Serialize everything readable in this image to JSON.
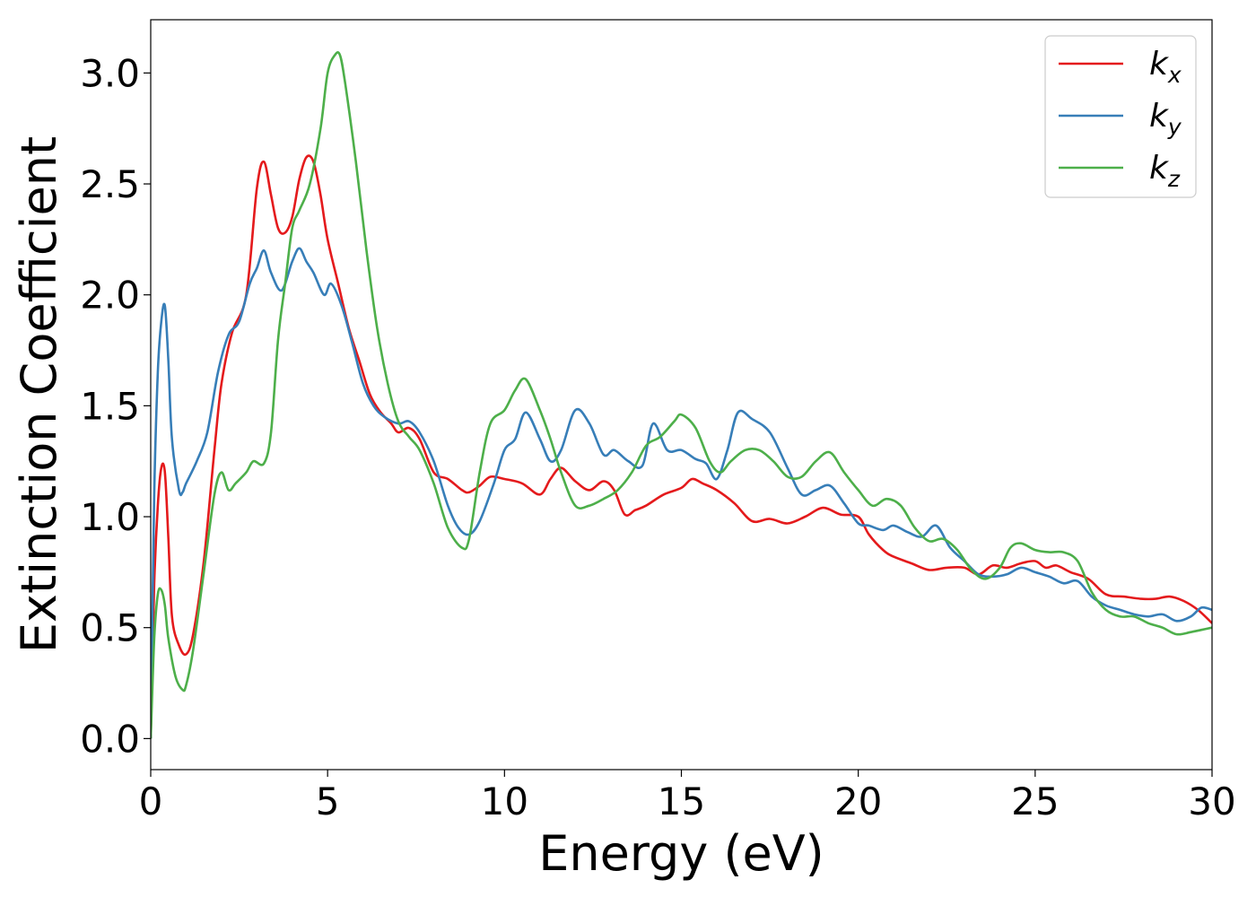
{
  "chart_data": {
    "type": "line",
    "title": "",
    "xlabel": "Energy (eV)",
    "ylabel": "Extinction Coefficient",
    "xlim": [
      0,
      30
    ],
    "ylim": [
      -0.14,
      3.24
    ],
    "xticks": [
      0,
      5,
      10,
      15,
      20,
      25,
      30
    ],
    "yticks": [
      0.0,
      0.5,
      1.0,
      1.5,
      2.0,
      2.5,
      3.0
    ],
    "xtick_labels": [
      "0",
      "5",
      "10",
      "15",
      "20",
      "25",
      "30"
    ],
    "ytick_labels": [
      "0.0",
      "0.5",
      "1.0",
      "1.5",
      "2.0",
      "2.5",
      "3.0"
    ],
    "grid": false,
    "legend_position": "top-right",
    "series": [
      {
        "name": "k_x",
        "label_main": "k",
        "label_sub": "x",
        "color": "#e41a1c",
        "x": [
          0.0,
          0.1,
          0.2,
          0.3,
          0.4,
          0.5,
          0.6,
          0.8,
          1.0,
          1.2,
          1.5,
          1.8,
          2.0,
          2.3,
          2.7,
          3.0,
          3.2,
          3.4,
          3.6,
          3.8,
          4.0,
          4.2,
          4.4,
          4.6,
          4.8,
          5.0,
          5.3,
          5.6,
          5.9,
          6.2,
          6.5,
          6.8,
          7.0,
          7.3,
          7.6,
          8.0,
          8.4,
          8.8,
          9.0,
          9.3,
          9.6,
          10.0,
          10.5,
          11.0,
          11.3,
          11.6,
          12.0,
          12.4,
          12.8,
          13.1,
          13.4,
          13.7,
          14.0,
          14.5,
          15.0,
          15.3,
          15.6,
          16.0,
          16.5,
          17.0,
          17.5,
          18.0,
          18.5,
          19.0,
          19.5,
          20.0,
          20.3,
          20.7,
          21.0,
          21.5,
          22.0,
          22.5,
          23.0,
          23.4,
          23.8,
          24.2,
          24.6,
          25.0,
          25.3,
          25.6,
          26.0,
          26.5,
          27.0,
          27.5,
          28.0,
          28.4,
          28.8,
          29.2,
          29.6,
          30.0
        ],
        "y": [
          0.0,
          0.7,
          1.05,
          1.22,
          1.2,
          0.9,
          0.55,
          0.42,
          0.38,
          0.47,
          0.8,
          1.3,
          1.6,
          1.83,
          2.0,
          2.48,
          2.6,
          2.45,
          2.3,
          2.28,
          2.35,
          2.52,
          2.62,
          2.6,
          2.45,
          2.25,
          2.05,
          1.85,
          1.7,
          1.55,
          1.47,
          1.42,
          1.38,
          1.4,
          1.35,
          1.2,
          1.17,
          1.12,
          1.11,
          1.14,
          1.18,
          1.17,
          1.15,
          1.1,
          1.17,
          1.22,
          1.16,
          1.12,
          1.16,
          1.12,
          1.01,
          1.03,
          1.05,
          1.1,
          1.13,
          1.17,
          1.15,
          1.12,
          1.06,
          0.98,
          0.99,
          0.97,
          1.0,
          1.04,
          1.01,
          1.0,
          0.92,
          0.85,
          0.82,
          0.79,
          0.76,
          0.77,
          0.77,
          0.74,
          0.78,
          0.77,
          0.79,
          0.8,
          0.77,
          0.78,
          0.75,
          0.72,
          0.65,
          0.64,
          0.63,
          0.63,
          0.64,
          0.62,
          0.58,
          0.52
        ]
      },
      {
        "name": "k_y",
        "label_main": "k",
        "label_sub": "y",
        "color": "#377eb8",
        "x": [
          0.0,
          0.1,
          0.2,
          0.3,
          0.4,
          0.5,
          0.6,
          0.8,
          0.9,
          1.0,
          1.3,
          1.6,
          1.9,
          2.2,
          2.5,
          2.8,
          3.0,
          3.2,
          3.4,
          3.7,
          4.0,
          4.2,
          4.4,
          4.6,
          4.9,
          5.1,
          5.4,
          5.7,
          6.0,
          6.3,
          6.6,
          7.0,
          7.3,
          7.6,
          8.0,
          8.4,
          8.7,
          9.0,
          9.3,
          9.7,
          10.0,
          10.3,
          10.6,
          11.0,
          11.3,
          11.6,
          12.0,
          12.4,
          12.8,
          13.1,
          13.5,
          13.9,
          14.2,
          14.6,
          15.0,
          15.4,
          15.7,
          16.0,
          16.3,
          16.6,
          17.0,
          17.5,
          18.0,
          18.4,
          18.8,
          19.2,
          19.6,
          20.0,
          20.3,
          20.7,
          21.0,
          21.4,
          21.8,
          22.2,
          22.6,
          23.0,
          23.4,
          23.8,
          24.2,
          24.6,
          25.0,
          25.4,
          25.8,
          26.2,
          26.6,
          27.0,
          27.4,
          27.8,
          28.2,
          28.6,
          29.0,
          29.4,
          29.7,
          30.0
        ],
        "y": [
          0.0,
          1.1,
          1.65,
          1.88,
          1.95,
          1.7,
          1.35,
          1.12,
          1.11,
          1.15,
          1.25,
          1.38,
          1.65,
          1.82,
          1.88,
          2.05,
          2.12,
          2.2,
          2.1,
          2.02,
          2.15,
          2.21,
          2.15,
          2.1,
          2.0,
          2.05,
          1.95,
          1.78,
          1.6,
          1.5,
          1.45,
          1.42,
          1.43,
          1.38,
          1.25,
          1.05,
          0.95,
          0.92,
          0.98,
          1.15,
          1.3,
          1.35,
          1.47,
          1.35,
          1.25,
          1.3,
          1.48,
          1.42,
          1.28,
          1.3,
          1.25,
          1.23,
          1.42,
          1.3,
          1.3,
          1.26,
          1.24,
          1.17,
          1.3,
          1.47,
          1.44,
          1.38,
          1.22,
          1.1,
          1.12,
          1.14,
          1.06,
          0.97,
          0.96,
          0.94,
          0.96,
          0.93,
          0.91,
          0.96,
          0.86,
          0.8,
          0.74,
          0.73,
          0.74,
          0.77,
          0.75,
          0.73,
          0.7,
          0.71,
          0.64,
          0.6,
          0.58,
          0.56,
          0.55,
          0.56,
          0.53,
          0.55,
          0.59,
          0.58
        ]
      },
      {
        "name": "k_z",
        "label_main": "k",
        "label_sub": "z",
        "color": "#4daf4a",
        "x": [
          0.0,
          0.1,
          0.2,
          0.3,
          0.4,
          0.5,
          0.7,
          0.9,
          1.0,
          1.2,
          1.5,
          1.8,
          2.0,
          2.2,
          2.4,
          2.7,
          2.9,
          3.2,
          3.4,
          3.6,
          3.8,
          4.0,
          4.2,
          4.5,
          4.8,
          5.0,
          5.2,
          5.35,
          5.5,
          5.8,
          6.1,
          6.4,
          6.7,
          7.0,
          7.3,
          7.6,
          8.0,
          8.4,
          8.8,
          9.0,
          9.3,
          9.6,
          10.0,
          10.3,
          10.6,
          11.0,
          11.3,
          11.6,
          12.0,
          12.4,
          12.8,
          13.2,
          13.6,
          14.0,
          14.4,
          14.8,
          15.0,
          15.4,
          15.8,
          16.1,
          16.4,
          16.8,
          17.2,
          17.6,
          18.0,
          18.4,
          18.8,
          19.2,
          19.6,
          20.0,
          20.4,
          20.8,
          21.2,
          21.6,
          22.0,
          22.4,
          22.8,
          23.2,
          23.6,
          24.0,
          24.3,
          24.6,
          25.0,
          25.4,
          25.8,
          26.2,
          26.6,
          27.0,
          27.4,
          27.8,
          28.2,
          28.6,
          29.0,
          29.4,
          29.7,
          30.0
        ],
        "y": [
          0.0,
          0.45,
          0.65,
          0.67,
          0.6,
          0.45,
          0.28,
          0.22,
          0.24,
          0.4,
          0.75,
          1.1,
          1.2,
          1.12,
          1.15,
          1.2,
          1.25,
          1.24,
          1.38,
          1.8,
          2.05,
          2.3,
          2.38,
          2.5,
          2.75,
          3.0,
          3.08,
          3.08,
          2.95,
          2.6,
          2.2,
          1.85,
          1.6,
          1.43,
          1.36,
          1.3,
          1.15,
          0.95,
          0.86,
          0.9,
          1.2,
          1.42,
          1.48,
          1.57,
          1.62,
          1.48,
          1.35,
          1.2,
          1.05,
          1.05,
          1.08,
          1.12,
          1.2,
          1.32,
          1.36,
          1.43,
          1.46,
          1.4,
          1.25,
          1.2,
          1.25,
          1.3,
          1.3,
          1.25,
          1.18,
          1.18,
          1.25,
          1.29,
          1.2,
          1.12,
          1.05,
          1.08,
          1.05,
          0.95,
          0.89,
          0.9,
          0.85,
          0.76,
          0.72,
          0.77,
          0.86,
          0.88,
          0.85,
          0.84,
          0.84,
          0.8,
          0.66,
          0.58,
          0.55,
          0.55,
          0.52,
          0.5,
          0.47,
          0.48,
          0.49,
          0.5
        ]
      }
    ]
  }
}
